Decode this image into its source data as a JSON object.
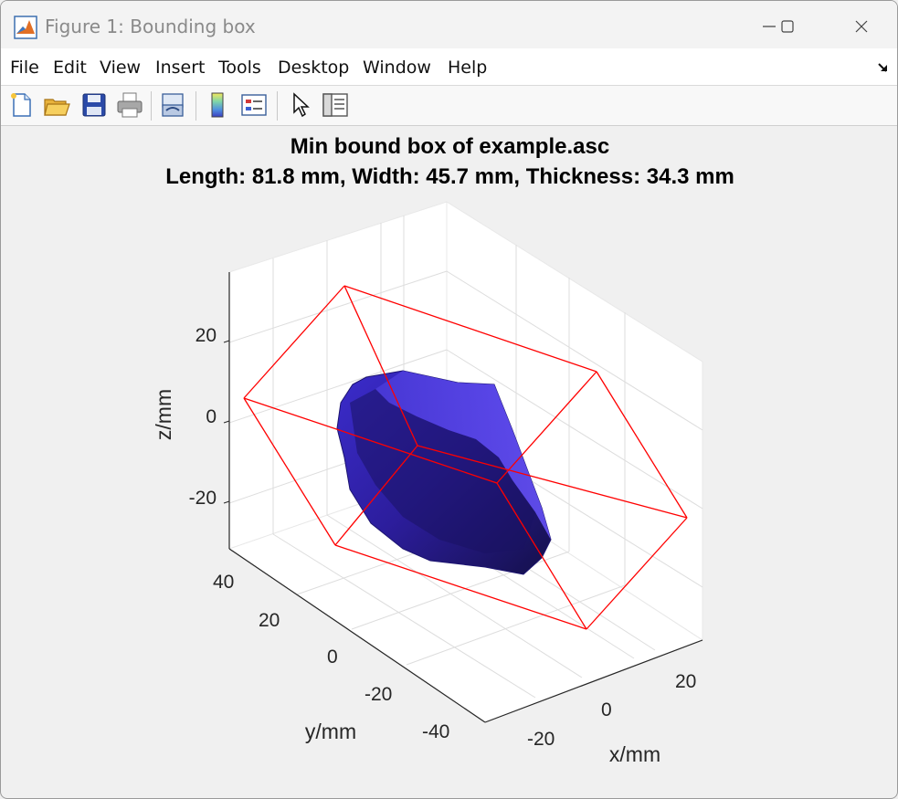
{
  "window": {
    "title": "Figure 1: Bounding box",
    "app_icon": "matlab-icon"
  },
  "menu": {
    "items": [
      "File",
      "Edit",
      "View",
      "Insert",
      "Tools",
      "Desktop",
      "Window",
      "Help"
    ]
  },
  "toolbar": {
    "buttons": [
      "new-figure-icon",
      "open-file-icon",
      "save-icon",
      "print-icon",
      "link-plot-icon",
      "insert-colorbar-icon",
      "insert-legend-icon",
      "edit-plot-arrow-icon",
      "property-inspector-icon"
    ]
  },
  "plot": {
    "title_line1": "Min bound box of example.asc",
    "title_line2": "Length: 81.8 mm, Width: 45.7 mm, Thickness: 34.3 mm",
    "xlabel": "x/mm",
    "ylabel": "y/mm",
    "zlabel": "z/mm",
    "x_ticks": [
      "-20",
      "0",
      "20"
    ],
    "y_ticks": [
      "40",
      "20",
      "0",
      "-20",
      "-40"
    ],
    "z_ticks": [
      "20",
      "0",
      "-20"
    ],
    "object_color": "#2a1a9e",
    "box_color": "#ff0000"
  }
}
